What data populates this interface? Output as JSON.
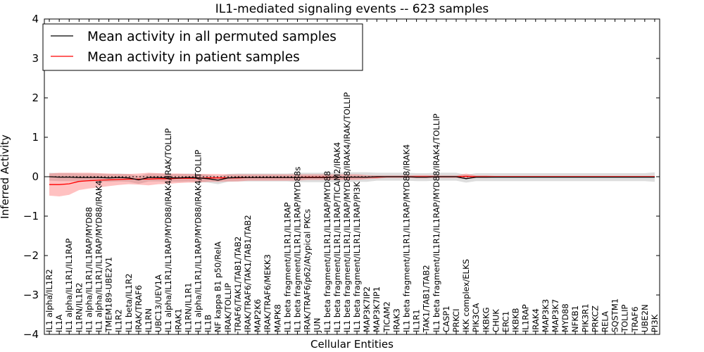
{
  "chart_data": {
    "type": "line",
    "title": "IL1-mediated signaling events -- 623 samples",
    "xlabel": "Cellular Entities",
    "ylabel": "Inferred Activity",
    "ylim": [
      -4,
      4
    ],
    "yticks": [
      -4,
      -3,
      -2,
      -1,
      0,
      1,
      2,
      3,
      4
    ],
    "ytick_labels": [
      "−4",
      "−3",
      "−2",
      "−1",
      "0",
      "1",
      "2",
      "3",
      "4"
    ],
    "legend": {
      "placement": "top-left",
      "entries": [
        {
          "label": "Mean activity in all permuted samples",
          "color": "#000000"
        },
        {
          "label": "Mean activity in patient samples",
          "color": "#ff0000"
        }
      ]
    },
    "categories": [
      "IL1 alpha/IL1R2",
      "IL1A",
      "IL1 alpha/IL1R1/IL1RAP",
      "IL1RN/IL1R2",
      "IL1 alpha/IL1R1/IL1RAP/MYD88",
      "IL1 alpha/IL1R1/IL1RAP/MYD88/IRAK4",
      "TMEM189-UBE2V1",
      "IL1R2",
      "IL1 beta/IL1R2",
      "IRAK/TRAF6",
      "IL1RN",
      "UBC13/UEV1A",
      "IL1 alpha/IL1R1/IL1RAP/MYD88/IRAK4/IRAK/TOLLIP",
      "IRAK1",
      "IL1RN/IL1R1",
      "IL1 alpha/IL1R1/IL1RAP/MYD88/IRAK4/TOLLIP",
      "IL1B",
      "NF kappa B1 p50/RelA",
      "IRAK/TOLLIP",
      "TRAF6/TAK1/TAB1/TAB2",
      "IRAK/TRAF6/TAK1/TAB1/TAB2",
      "MAP2K6",
      "IRAK/TRAF6/MEKK3",
      "MAPK8",
      "IL1 beta fragment/IL1R1/IL1RAP",
      "IL1 beta fragment/IL1R1/IL1RAP/MYD88s",
      "IRAK/TRAF6/p62/Atypical PKCs",
      "JUN",
      "IL1 beta fragment/IL1R1/IL1RAP/MYD88",
      "IL1 beta fragment/IL1R1/IL1RAP/TICAM2/IRAK4",
      "IL1 beta fragment/IL1R1/IL1RAP/MYD88/IRAK4/IRAK/TOLLIP",
      "IL1 beta fragment/IL1R1/IL1RAP/PI3K",
      "MAP3K7IP2",
      "MAP3K7IP1",
      "TICAM2",
      "IRAK3",
      "IL1 beta fragment/IL1R1/IL1RAP/MYD88/IRAK4",
      "IL1R1",
      "TAK1/TAB1/TAB2",
      "IL1 beta fragment/IL1R1/IL1RAP/MYD88/IRAK4/TOLLIP",
      "CASP1",
      "PRKCI",
      "IKK complex/ELKS",
      "PIK3CA",
      "IKBKG",
      "CHUK",
      "ERC1",
      "IKBKB",
      "IL1RAP",
      "IRAK4",
      "MAP3K3",
      "MAP3K7",
      "MYD88",
      "NFKB1",
      "PIK3R1",
      "PRKCZ",
      "RELA",
      "SQSTM1",
      "TOLLIP",
      "TRAF6",
      "UBE2N",
      "PI3K"
    ],
    "series": [
      {
        "name": "Mean activity in all permuted samples",
        "color": "#000000",
        "values": [
          0.0,
          -0.01,
          -0.01,
          -0.02,
          -0.02,
          -0.02,
          -0.03,
          -0.02,
          -0.03,
          -0.08,
          -0.02,
          -0.02,
          -0.03,
          -0.03,
          -0.02,
          -0.03,
          -0.05,
          -0.09,
          -0.03,
          -0.02,
          -0.02,
          -0.02,
          -0.02,
          -0.02,
          -0.02,
          -0.02,
          -0.02,
          -0.02,
          -0.02,
          -0.01,
          -0.01,
          -0.01,
          -0.01,
          0.0,
          0.0,
          0.0,
          0.0,
          -0.01,
          -0.01,
          0.0,
          0.0,
          0.0,
          -0.05,
          -0.01,
          -0.01,
          -0.01,
          -0.01,
          -0.01,
          -0.01,
          -0.01,
          -0.01,
          -0.01,
          -0.01,
          -0.01,
          -0.01,
          -0.01,
          -0.01,
          -0.01,
          -0.01,
          -0.01,
          -0.01,
          -0.01
        ],
        "band": [
          0.1,
          0.1,
          0.1,
          0.1,
          0.1,
          0.1,
          0.1,
          0.1,
          0.1,
          0.1,
          0.1,
          0.1,
          0.1,
          0.1,
          0.1,
          0.1,
          0.1,
          0.1,
          0.1,
          0.1,
          0.1,
          0.1,
          0.1,
          0.1,
          0.1,
          0.12,
          0.12,
          0.12,
          0.12,
          0.12,
          0.12,
          0.12,
          0.12,
          0.1,
          0.1,
          0.1,
          0.1,
          0.1,
          0.1,
          0.1,
          0.1,
          0.1,
          0.1,
          0.1,
          0.1,
          0.1,
          0.1,
          0.1,
          0.1,
          0.1,
          0.1,
          0.1,
          0.1,
          0.1,
          0.1,
          0.1,
          0.1,
          0.1,
          0.1,
          0.1,
          0.1,
          0.12
        ]
      },
      {
        "name": "Mean activity in patient samples",
        "color": "#ff0000",
        "values": [
          -0.2,
          -0.2,
          -0.18,
          -0.12,
          -0.1,
          -0.09,
          -0.08,
          -0.07,
          -0.06,
          -0.06,
          -0.06,
          -0.05,
          -0.05,
          -0.04,
          -0.04,
          -0.04,
          -0.03,
          -0.03,
          -0.03,
          -0.03,
          -0.02,
          -0.02,
          -0.02,
          -0.02,
          -0.02,
          -0.02,
          -0.01,
          -0.01,
          -0.01,
          -0.01,
          -0.01,
          -0.01,
          -0.01,
          -0.01,
          0.0,
          0.0,
          0.0,
          0.0,
          0.0,
          0.0,
          0.0,
          0.0,
          0.01,
          0.0,
          0.0,
          0.0,
          0.0,
          0.0,
          0.0,
          0.0,
          0.0,
          0.0,
          0.0,
          0.0,
          0.0,
          0.0,
          0.0,
          0.0,
          0.0,
          0.0,
          0.0,
          0.0
        ],
        "band": [
          0.28,
          0.3,
          0.28,
          0.22,
          0.2,
          0.18,
          0.16,
          0.14,
          0.13,
          0.14,
          0.16,
          0.14,
          0.13,
          0.12,
          0.11,
          0.11,
          0.1,
          0.1,
          0.09,
          0.09,
          0.08,
          0.08,
          0.08,
          0.08,
          0.08,
          0.08,
          0.07,
          0.07,
          0.07,
          0.07,
          0.07,
          0.07,
          0.05,
          0.04,
          0.03,
          0.03,
          0.03,
          0.04,
          0.04,
          0.03,
          0.03,
          0.03,
          0.07,
          0.03,
          0.03,
          0.02,
          0.02,
          0.02,
          0.02,
          0.02,
          0.02,
          0.02,
          0.02,
          0.02,
          0.02,
          0.02,
          0.02,
          0.02,
          0.02,
          0.02,
          0.02,
          0.02
        ]
      }
    ]
  }
}
